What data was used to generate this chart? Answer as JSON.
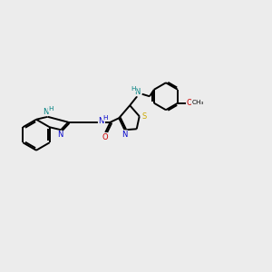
{
  "bg_color": "#ececec",
  "bond_color": "#000000",
  "N_color": "#0000cc",
  "NH_color": "#008080",
  "S_color": "#ccaa00",
  "O_color": "#cc0000",
  "figsize": [
    3.0,
    3.0
  ],
  "dpi": 100,
  "xlim": [
    0,
    12
  ],
  "ylim": [
    2,
    9
  ]
}
